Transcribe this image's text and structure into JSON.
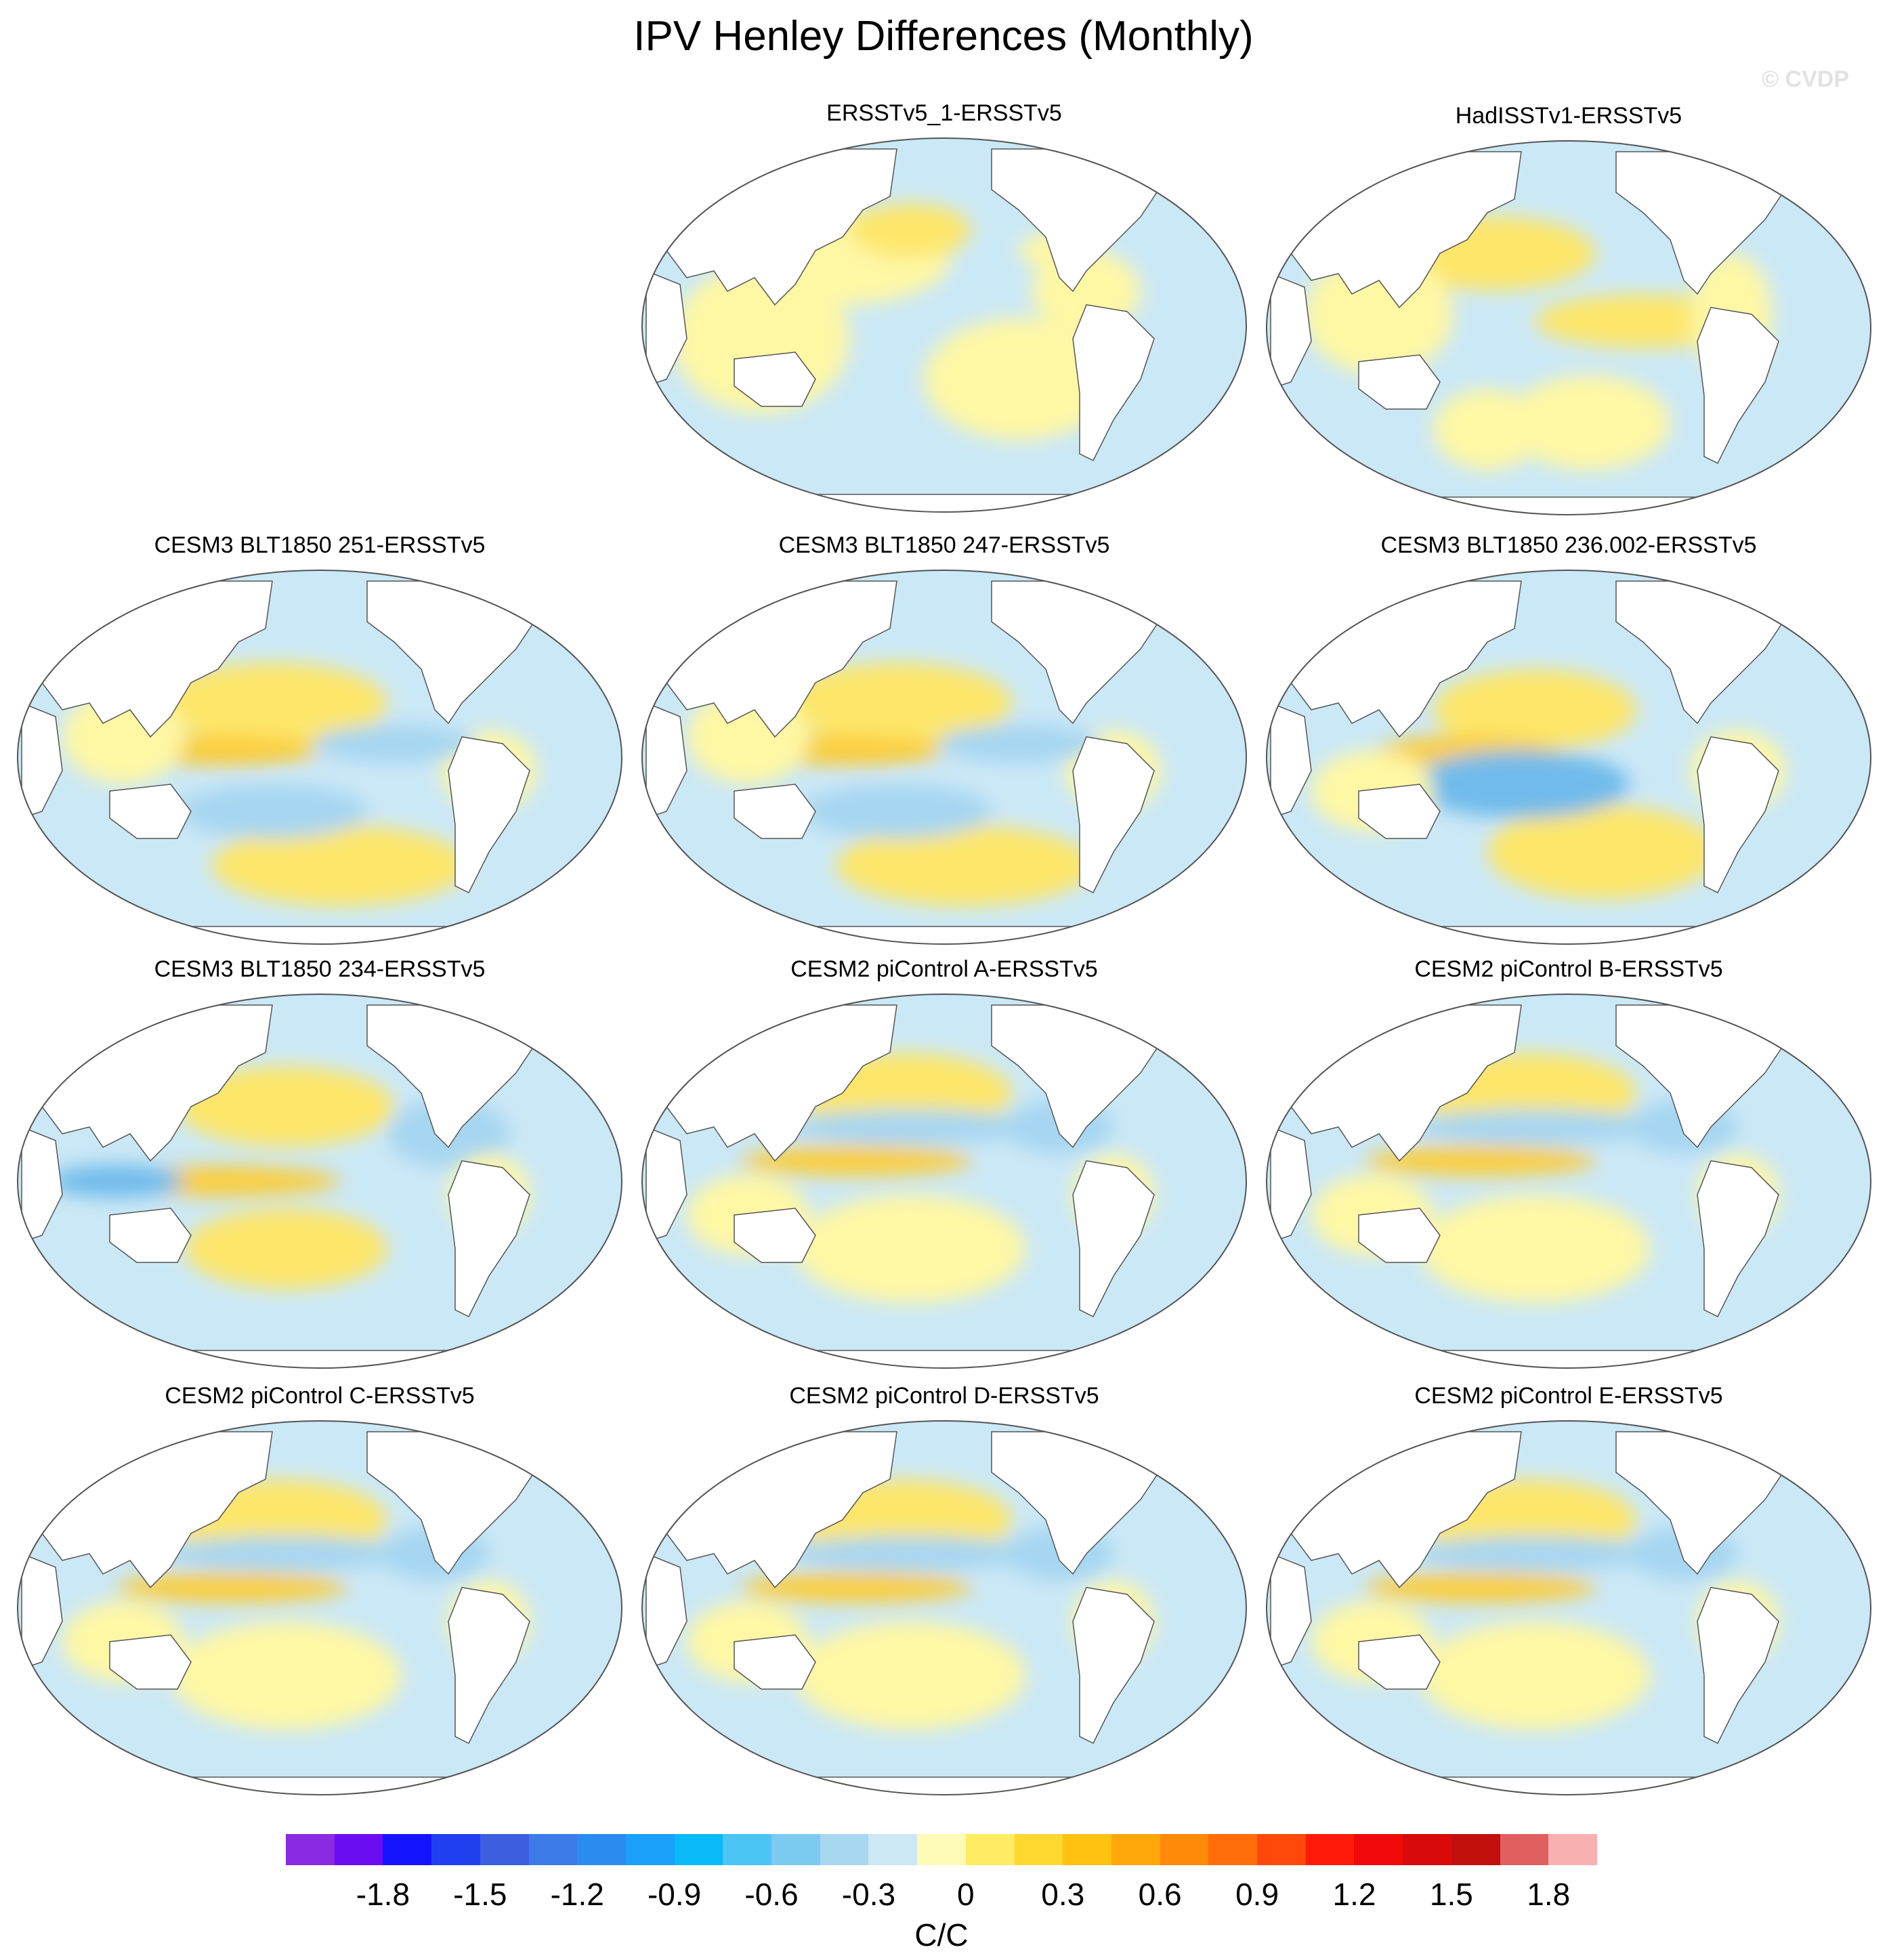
{
  "title": "IPV Henley Differences (Monthly)",
  "watermark": "© CVDP",
  "panels": [
    {
      "title": "ERSSTv5_1-ERSSTv5",
      "pattern": "obs1"
    },
    {
      "title": "HadISSTv1-ERSSTv5",
      "pattern": "obs2"
    },
    {
      "title": "CESM3 BLT1850 251-ERSSTv5",
      "pattern": "cesm3a"
    },
    {
      "title": "CESM3 BLT1850 247-ERSSTv5",
      "pattern": "cesm3a"
    },
    {
      "title": "CESM3 BLT1850 236.002-ERSSTv5",
      "pattern": "cesm3b"
    },
    {
      "title": "CESM3 BLT1850 234-ERSSTv5",
      "pattern": "cesm3c"
    },
    {
      "title": "CESM2 piControl A-ERSSTv5",
      "pattern": "cesm2"
    },
    {
      "title": "CESM2 piControl B-ERSSTv5",
      "pattern": "cesm2"
    },
    {
      "title": "CESM2 piControl C-ERSSTv5",
      "pattern": "cesm2"
    },
    {
      "title": "CESM2 piControl D-ERSSTv5",
      "pattern": "cesm2"
    },
    {
      "title": "CESM2 piControl E-ERSSTv5",
      "pattern": "cesm2"
    }
  ],
  "colorbar": {
    "units": "C/C",
    "tick_labels": [
      "-1.8",
      "-1.5",
      "-1.2",
      "-0.9",
      "-0.6",
      "-0.3",
      "0",
      "0.3",
      "0.6",
      "0.9",
      "1.2",
      "1.5",
      "1.8"
    ],
    "colors": [
      "#8a2be2",
      "#6a0df0",
      "#1414ff",
      "#2040f0",
      "#3c5fe0",
      "#3d7be8",
      "#2b8cf0",
      "#1aa0f8",
      "#08baf8",
      "#4cc4f4",
      "#7ccaf0",
      "#a8d8f0",
      "#cce8f4",
      "#fefbb8",
      "#ffec62",
      "#ffd830",
      "#ffc210",
      "#ffa60a",
      "#ff8a0a",
      "#ff6e0a",
      "#ff480a",
      "#ff1a0a",
      "#f00a0a",
      "#d80a0a",
      "#c40f0f",
      "#e06060",
      "#f8b0b0"
    ]
  },
  "map_colors": {
    "ocean": "#cbe8f6",
    "warm": "#fef7a4",
    "warm2": "#fde66a",
    "warm3": "#fbcd3a",
    "cool2": "#a6d6f1",
    "cool3": "#6fbbeb",
    "land": "#ffffff",
    "outline": "#555555"
  }
}
